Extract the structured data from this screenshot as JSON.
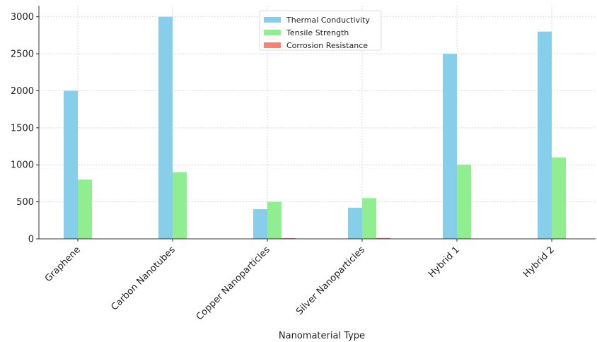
{
  "chart_data": {
    "type": "bar",
    "title": "",
    "xlabel": "Nanomaterial Type",
    "ylabel": "",
    "categories": [
      "Graphene",
      "Carbon Nanotubes",
      "Copper Nanoparticles",
      "Silver Nanoparticles",
      "Hybrid 1",
      "Hybrid 2"
    ],
    "series": [
      {
        "name": "Thermal Conductivity",
        "color": "#87ceeb",
        "values": [
          2000,
          3000,
          400,
          420,
          2500,
          2800
        ]
      },
      {
        "name": "Tensile Strength",
        "color": "#90ee90",
        "values": [
          800,
          900,
          500,
          550,
          1000,
          1100
        ]
      },
      {
        "name": "Corrosion Resistance",
        "color": "#fa8072",
        "values": [
          0,
          0,
          10,
          12,
          0,
          0
        ]
      }
    ],
    "yticks": [
      0,
      500,
      1000,
      1500,
      2000,
      2500,
      3000
    ],
    "ylim": [
      0,
      3150
    ],
    "grid": true,
    "legend_position": "top-center"
  }
}
